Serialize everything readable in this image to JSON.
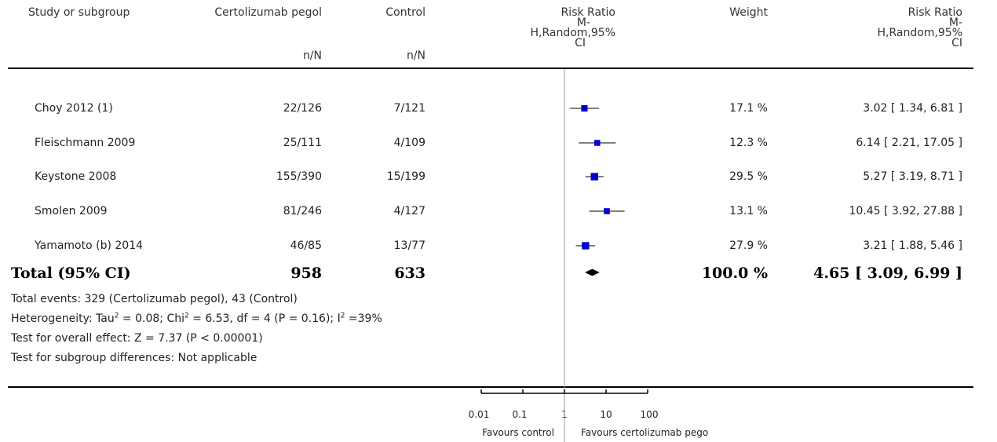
{
  "headers": {
    "study": "Study or subgroup",
    "exp": "Certolizumab pegol",
    "ctrl": "Control",
    "rr_plot_lines": [
      "Risk Ratio",
      "M-",
      "H,Random,95%",
      "CI"
    ],
    "weight": "Weight",
    "rr_text_lines": [
      "Risk Ratio",
      "M-",
      "H,Random,95%",
      "CI"
    ],
    "exp_sub": "n/N",
    "ctrl_sub": "n/N"
  },
  "studies": [
    {
      "name": "Choy 2012 (1)",
      "exp": "22/126",
      "ctrl": "7/121",
      "weight": "17.1 %",
      "ci_text": "3.02 [ 1.34, 6.81 ]"
    },
    {
      "name": "Fleischmann 2009",
      "exp": "25/111",
      "ctrl": "4/109",
      "weight": "12.3 %",
      "ci_text": "6.14 [ 2.21, 17.05 ]"
    },
    {
      "name": "Keystone 2008",
      "exp": "155/390",
      "ctrl": "15/199",
      "weight": "29.5 %",
      "ci_text": "5.27 [ 3.19, 8.71 ]"
    },
    {
      "name": "Smolen 2009",
      "exp": "81/246",
      "ctrl": "4/127",
      "weight": "13.1 %",
      "ci_text": "10.45 [ 3.92, 27.88 ]"
    },
    {
      "name": "Yamamoto (b) 2014",
      "exp": "46/85",
      "ctrl": "13/77",
      "weight": "27.9 %",
      "ci_text": "3.21 [ 1.88, 5.46 ]"
    }
  ],
  "total": {
    "label": "Total (95% CI)",
    "exp": "958",
    "ctrl": "633",
    "weight": "100.0 %",
    "ci_text": "4.65 [ 3.09, 6.99 ]"
  },
  "footer": {
    "events": "Total events: 329 (Certolizumab pegol), 43 (Control)",
    "het_a": "Heterogeneity: Tau",
    "het_b": " = 0.08; Chi",
    "het_c": " = 6.53, df = 4 (P = 0.16); I",
    "het_d": " =39%",
    "sup2": "2",
    "overall": "Test for overall effect: Z = 7.37 (P < 0.00001)",
    "subgroup": "Test for subgroup differences: Not applicable"
  },
  "axis": {
    "tick_labels": [
      "0.01",
      "0.1",
      "1",
      "10",
      "100"
    ],
    "favours_left": "Favours control",
    "favours_right": "Favours certolizumab pego"
  },
  "chart_data": {
    "type": "forest",
    "x_scale": "log",
    "xlim": [
      0.01,
      100
    ],
    "ticks": [
      0.01,
      0.1,
      1,
      10,
      100
    ],
    "studies": [
      {
        "name": "Choy 2012 (1)",
        "rr": 3.02,
        "lo": 1.34,
        "hi": 6.81,
        "weight": 17.1
      },
      {
        "name": "Fleischmann 2009",
        "rr": 6.14,
        "lo": 2.21,
        "hi": 17.05,
        "weight": 12.3
      },
      {
        "name": "Keystone 2008",
        "rr": 5.27,
        "lo": 3.19,
        "hi": 8.71,
        "weight": 29.5
      },
      {
        "name": "Smolen 2009",
        "rr": 10.45,
        "lo": 3.92,
        "hi": 27.88,
        "weight": 13.1
      },
      {
        "name": "Yamamoto (b) 2014",
        "rr": 3.21,
        "lo": 1.88,
        "hi": 5.46,
        "weight": 27.9
      }
    ],
    "pooled": {
      "rr": 4.65,
      "lo": 3.09,
      "hi": 6.99,
      "weight": 100.0
    },
    "colors": {
      "marker": "#0000cc",
      "line": "#000000"
    }
  }
}
